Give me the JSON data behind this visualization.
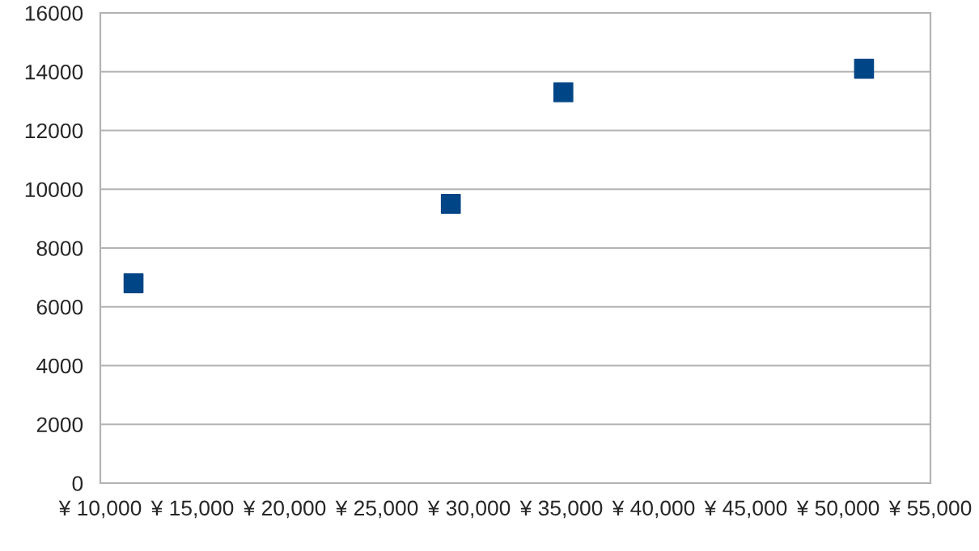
{
  "chart_data": {
    "type": "scatter",
    "x": [
      11800,
      29000,
      35100,
      51400
    ],
    "series": [
      {
        "color": "#004586",
        "values": [
          6800,
          9500,
          13300,
          14100
        ]
      }
    ],
    "xlim": [
      10000,
      55000
    ],
    "xticks": [
      {
        "value": 10000,
        "label": "¥ 10,000"
      },
      {
        "value": 15000,
        "label": "¥ 15,000"
      },
      {
        "value": 20000,
        "label": "¥ 20,000"
      },
      {
        "value": 25000,
        "label": "¥ 25,000"
      },
      {
        "value": 30000,
        "label": "¥ 30,000"
      },
      {
        "value": 35000,
        "label": "¥ 35,000"
      },
      {
        "value": 40000,
        "label": "¥ 40,000"
      },
      {
        "value": 45000,
        "label": "¥ 45,000"
      },
      {
        "value": 50000,
        "label": "¥ 50,000"
      },
      {
        "value": 55000,
        "label": "¥ 55,000"
      }
    ],
    "ylim": [
      0,
      16000
    ],
    "yticks": [
      0,
      2000,
      4000,
      6000,
      8000,
      10000,
      12000,
      14000,
      16000
    ],
    "grid": "y",
    "marker": "square"
  }
}
